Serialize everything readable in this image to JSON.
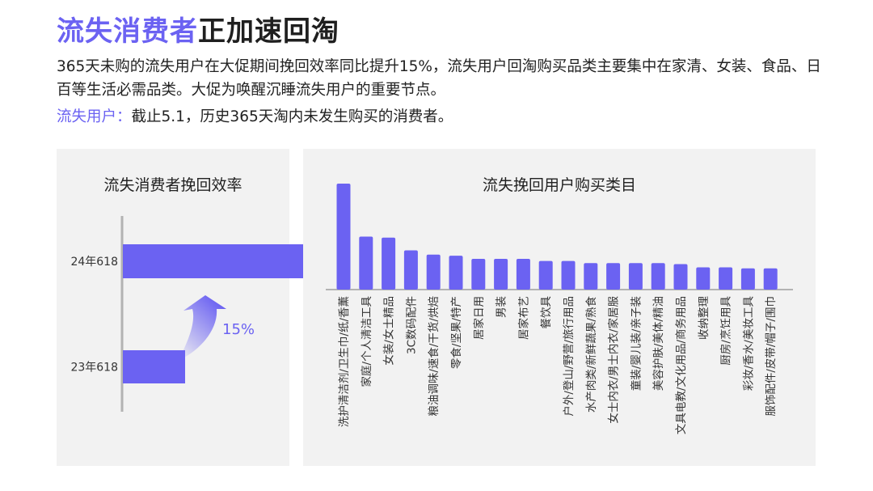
{
  "header": {
    "title_accent": "流失消费者",
    "title_rest": "正加速回淘",
    "description": "365天未购的流失用户在大促期间挽回效率同比提升15%，流失用户回淘购买品类主要集中在家清、女装、食品、日百等生活必需品类。大促为唤醒沉睡流失用户的重要节点。",
    "note_label": "流失用户：",
    "note_text": "截止5.1，历史365天淘内未发生购买的消费者。"
  },
  "colors": {
    "accent": "#6b62f2",
    "panel_bg": "#f2f2f2",
    "axis": "#b3b3b3"
  },
  "chart_data": [
    {
      "type": "bar",
      "orientation": "horizontal",
      "title": "流失消费者挽回效率",
      "categories": [
        "24年618",
        "23年618"
      ],
      "values": [
        1.6,
        0.55
      ],
      "annotation": "15%",
      "grid": false
    },
    {
      "type": "bar",
      "orientation": "vertical",
      "title": "流失挽回用户购买类目",
      "categories": [
        "洗护清洁剂/卫生巾/纸/香薰",
        "家庭/个人清洁工具",
        "女装/女士精品",
        "3C数码配件",
        "粮油调味/速食/干货/烘焙",
        "零食/坚果/特产",
        "居家日用",
        "男装",
        "居家布艺",
        "餐饮具",
        "户外/登山/野营/旅行用品",
        "水产肉类/新鲜蔬果/熟食",
        "女士内衣/男士内衣/家居服",
        "童装/婴儿装/亲子装",
        "美容护肤/美体/精油",
        "文具电教/文化用品/商务用品",
        "收纳整理",
        "厨房/烹饪用具",
        "彩妆/香水/美妆工具",
        "服饰配件/皮带/帽子/围巾"
      ],
      "values": [
        100,
        50,
        49,
        37,
        33,
        32,
        29,
        29,
        29,
        27,
        27,
        25,
        25,
        25,
        25,
        24,
        21,
        21,
        20,
        20
      ],
      "grid": false
    }
  ]
}
